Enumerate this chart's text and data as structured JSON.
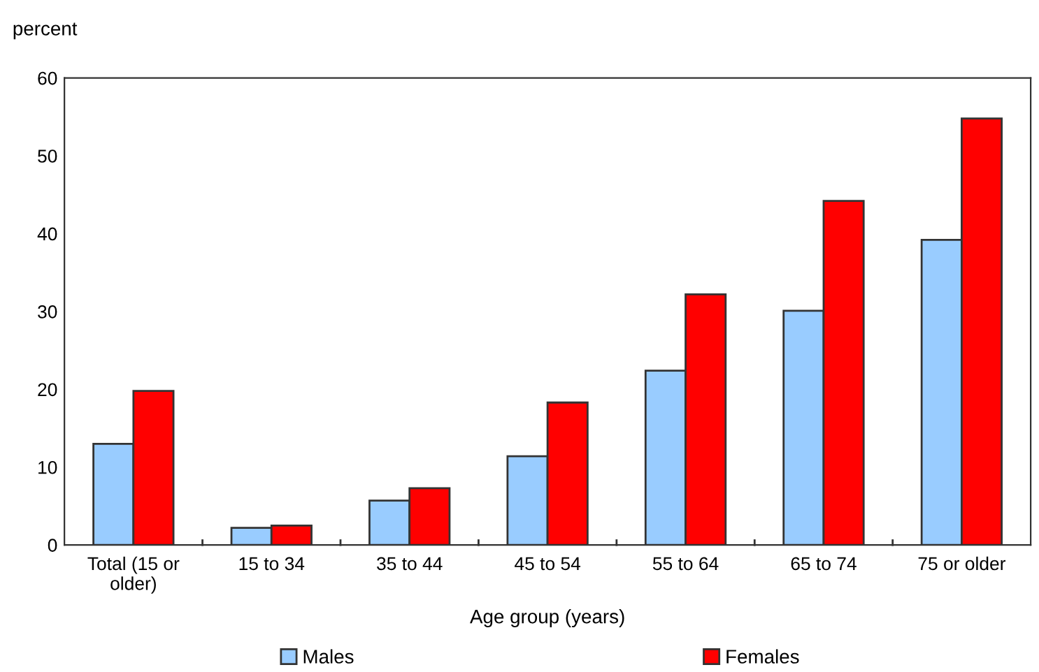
{
  "chart_data": {
    "type": "bar",
    "ylabel": "percent",
    "xlabel": "Age group (years)",
    "categories": [
      "Total (15 or\nolder)",
      "15 to 34",
      "35 to 44",
      "45 to 54",
      "55 to 64",
      "65 to 74",
      "75 or older"
    ],
    "series": [
      {
        "name": "Males",
        "color": "#99ccff",
        "values": [
          13.0,
          2.2,
          5.7,
          11.4,
          22.4,
          30.1,
          39.2
        ]
      },
      {
        "name": "Females",
        "color": "#ff0000",
        "values": [
          19.8,
          2.5,
          7.3,
          18.3,
          32.2,
          44.2,
          54.8
        ]
      }
    ],
    "ylim": [
      0,
      60
    ],
    "yticks": [
      0,
      10,
      20,
      30,
      40,
      50,
      60
    ],
    "grid": false,
    "legend": "bottom"
  }
}
